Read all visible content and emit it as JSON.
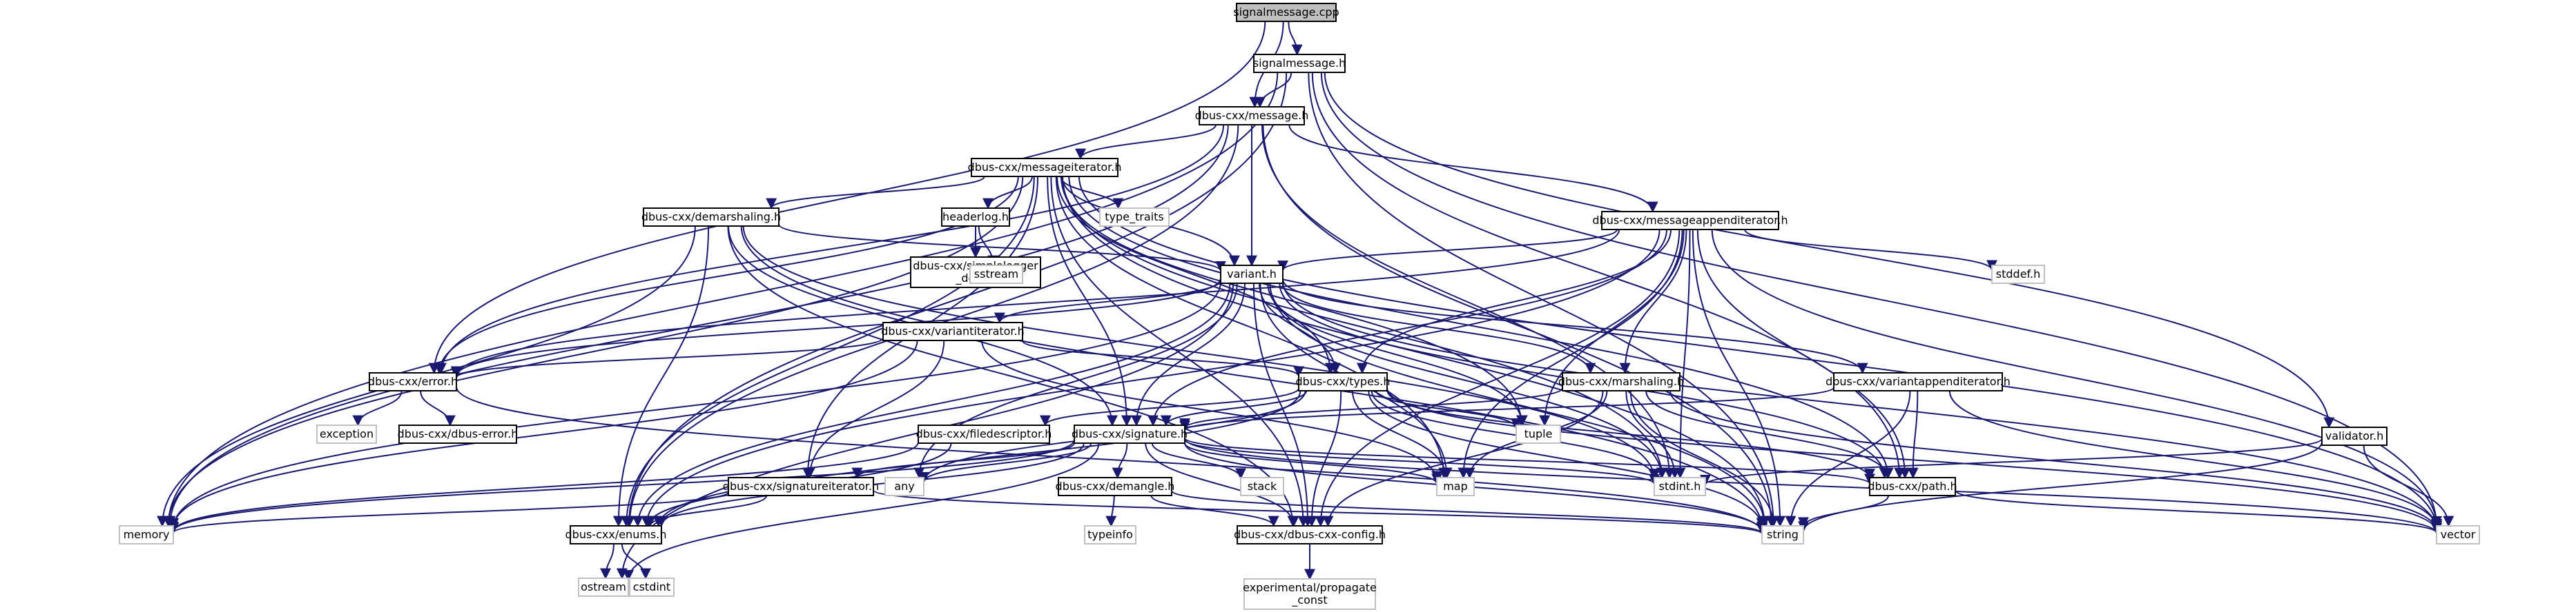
{
  "colors": {
    "edge": "#191970",
    "node_border": "#000000",
    "node_fill": "#ffffff",
    "root_fill": "#bfbfbf",
    "external_border": "#bfbfbf"
  },
  "nodes": [
    {
      "id": "signalmessage_cpp",
      "label": "signalmessage.cpp",
      "kind": "root"
    },
    {
      "id": "signalmessage_h",
      "label": "signalmessage.h",
      "kind": "local"
    },
    {
      "id": "message_h",
      "label": "dbus-cxx/message.h",
      "kind": "local"
    },
    {
      "id": "messageiterator_h",
      "label": "dbus-cxx/messageiterator.h",
      "kind": "local"
    },
    {
      "id": "type_traits",
      "label": "type_traits",
      "kind": "external"
    },
    {
      "id": "headerlog_h",
      "label": "headerlog.h",
      "kind": "local"
    },
    {
      "id": "demarshaling_h",
      "label": "dbus-cxx/demarshaling.h",
      "kind": "local"
    },
    {
      "id": "simplelogger",
      "label": "dbus-cxx/simplelogger\n_defs.h",
      "kind": "local"
    },
    {
      "id": "sstream",
      "label": "sstream",
      "kind": "external"
    },
    {
      "id": "messageappenditerator_h",
      "label": "dbus-cxx/messageappenditerator.h",
      "kind": "local"
    },
    {
      "id": "stddef_h",
      "label": "stddef.h",
      "kind": "external"
    },
    {
      "id": "variant_h",
      "label": "variant.h",
      "kind": "local"
    },
    {
      "id": "variantiterator_h",
      "label": "dbus-cxx/variantiterator.h",
      "kind": "local"
    },
    {
      "id": "error_h",
      "label": "dbus-cxx/error.h",
      "kind": "local"
    },
    {
      "id": "exception",
      "label": "exception",
      "kind": "external"
    },
    {
      "id": "dbus_error_h",
      "label": "dbus-cxx/dbus-error.h",
      "kind": "local"
    },
    {
      "id": "types_h",
      "label": "dbus-cxx/types.h",
      "kind": "local"
    },
    {
      "id": "marshaling_h",
      "label": "dbus-cxx/marshaling.h",
      "kind": "local"
    },
    {
      "id": "variantappenditerator_h",
      "label": "dbus-cxx/variantappenditerator.h",
      "kind": "local"
    },
    {
      "id": "filedescriptor_h",
      "label": "dbus-cxx/filedescriptor.h",
      "kind": "local"
    },
    {
      "id": "signature_h",
      "label": "dbus-cxx/signature.h",
      "kind": "local"
    },
    {
      "id": "tuple",
      "label": "tuple",
      "kind": "external"
    },
    {
      "id": "validator_h",
      "label": "validator.h",
      "kind": "local"
    },
    {
      "id": "signatureiterator_h",
      "label": "dbus-cxx/signatureiterator.h",
      "kind": "local"
    },
    {
      "id": "any",
      "label": "any",
      "kind": "external"
    },
    {
      "id": "stack",
      "label": "stack",
      "kind": "external"
    },
    {
      "id": "map",
      "label": "map",
      "kind": "external"
    },
    {
      "id": "demangle_h",
      "label": "dbus-cxx/demangle.h",
      "kind": "local"
    },
    {
      "id": "stdint_h",
      "label": "stdint.h",
      "kind": "external"
    },
    {
      "id": "path_h",
      "label": "dbus-cxx/path.h",
      "kind": "local"
    },
    {
      "id": "memory",
      "label": "memory",
      "kind": "external"
    },
    {
      "id": "enums_h",
      "label": "dbus-cxx/enums.h",
      "kind": "local"
    },
    {
      "id": "typeinfo",
      "label": "typeinfo",
      "kind": "external"
    },
    {
      "id": "dbus_cxx_config_h",
      "label": "dbus-cxx/dbus-cxx-config.h",
      "kind": "local"
    },
    {
      "id": "string",
      "label": "string",
      "kind": "external"
    },
    {
      "id": "vector",
      "label": "vector",
      "kind": "external"
    },
    {
      "id": "ostream",
      "label": "ostream",
      "kind": "external"
    },
    {
      "id": "cstdint",
      "label": "cstdint",
      "kind": "external"
    },
    {
      "id": "propagate_const",
      "label": "experimental/propagate\n_const",
      "kind": "external"
    }
  ],
  "edges": [
    [
      "signalmessage_cpp",
      "signalmessage_h"
    ],
    [
      "signalmessage_cpp",
      "message_h"
    ],
    [
      "signalmessage_cpp",
      "error_h"
    ],
    [
      "signalmessage_h",
      "message_h"
    ],
    [
      "signalmessage_h",
      "memory"
    ],
    [
      "signalmessage_h",
      "enums_h"
    ],
    [
      "signalmessage_h",
      "path_h"
    ],
    [
      "signalmessage_h",
      "string"
    ],
    [
      "signalmessage_h",
      "vector"
    ],
    [
      "signalmessage_h",
      "validator_h"
    ],
    [
      "message_h",
      "messageiterator_h"
    ],
    [
      "message_h",
      "messageappenditerator_h"
    ],
    [
      "message_h",
      "variant_h"
    ],
    [
      "message_h",
      "error_h"
    ],
    [
      "message_h",
      "memory"
    ],
    [
      "message_h",
      "stdint_h"
    ],
    [
      "message_h",
      "string"
    ],
    [
      "message_h",
      "enums_h"
    ],
    [
      "messageiterator_h",
      "type_traits"
    ],
    [
      "messageiterator_h",
      "headerlog_h"
    ],
    [
      "messageiterator_h",
      "demarshaling_h"
    ],
    [
      "messageiterator_h",
      "variant_h"
    ],
    [
      "messageiterator_h",
      "error_h"
    ],
    [
      "messageiterator_h",
      "types_h"
    ],
    [
      "messageiterator_h",
      "signature_h"
    ],
    [
      "messageiterator_h",
      "signatureiterator_h"
    ],
    [
      "messageiterator_h",
      "tuple"
    ],
    [
      "messageiterator_h",
      "map"
    ],
    [
      "messageiterator_h",
      "stdint_h"
    ],
    [
      "messageiterator_h",
      "string"
    ],
    [
      "messageiterator_h",
      "vector"
    ],
    [
      "messageiterator_h",
      "memory"
    ],
    [
      "messageiterator_h",
      "enums_h"
    ],
    [
      "messageiterator_h",
      "path_h"
    ],
    [
      "messageiterator_h",
      "dbus_cxx_config_h"
    ],
    [
      "headerlog_h",
      "simplelogger"
    ],
    [
      "headerlog_h",
      "sstream"
    ],
    [
      "demarshaling_h",
      "variant_h"
    ],
    [
      "demarshaling_h",
      "signature_h"
    ],
    [
      "demarshaling_h",
      "enums_h"
    ],
    [
      "demarshaling_h",
      "memory"
    ],
    [
      "demarshaling_h",
      "stdint_h"
    ],
    [
      "demarshaling_h",
      "string"
    ],
    [
      "demarshaling_h",
      "dbus_cxx_config_h"
    ],
    [
      "messageappenditerator_h",
      "variant_h"
    ],
    [
      "messageappenditerator_h",
      "stddef_h"
    ],
    [
      "messageappenditerator_h",
      "error_h"
    ],
    [
      "messageappenditerator_h",
      "marshaling_h"
    ],
    [
      "messageappenditerator_h",
      "signature_h"
    ],
    [
      "messageappenditerator_h",
      "types_h"
    ],
    [
      "messageappenditerator_h",
      "tuple"
    ],
    [
      "messageappenditerator_h",
      "map"
    ],
    [
      "messageappenditerator_h",
      "stdint_h"
    ],
    [
      "messageappenditerator_h",
      "string"
    ],
    [
      "messageappenditerator_h",
      "vector"
    ],
    [
      "messageappenditerator_h",
      "enums_h"
    ],
    [
      "messageappenditerator_h",
      "path_h"
    ],
    [
      "messageappenditerator_h",
      "dbus_cxx_config_h"
    ],
    [
      "variant_h",
      "variantiterator_h"
    ],
    [
      "variant_h",
      "error_h"
    ],
    [
      "variant_h",
      "types_h"
    ],
    [
      "variant_h",
      "marshaling_h"
    ],
    [
      "variant_h",
      "variantappenditerator_h"
    ],
    [
      "variant_h",
      "signature_h"
    ],
    [
      "variant_h",
      "tuple"
    ],
    [
      "variant_h",
      "any"
    ],
    [
      "variant_h",
      "map"
    ],
    [
      "variant_h",
      "stdint_h"
    ],
    [
      "variant_h",
      "string"
    ],
    [
      "variant_h",
      "vector"
    ],
    [
      "variant_h",
      "memory"
    ],
    [
      "variant_h",
      "enums_h"
    ],
    [
      "variant_h",
      "path_h"
    ],
    [
      "variant_h",
      "ostream"
    ],
    [
      "variant_h",
      "dbus_cxx_config_h"
    ],
    [
      "variantiterator_h",
      "error_h"
    ],
    [
      "variantiterator_h",
      "types_h"
    ],
    [
      "variantiterator_h",
      "signatureiterator_h"
    ],
    [
      "variantiterator_h",
      "memory"
    ],
    [
      "variantiterator_h",
      "map"
    ],
    [
      "error_h",
      "exception"
    ],
    [
      "error_h",
      "dbus_error_h"
    ],
    [
      "error_h",
      "string"
    ],
    [
      "types_h",
      "filedescriptor_h"
    ],
    [
      "types_h",
      "signature_h"
    ],
    [
      "types_h",
      "tuple"
    ],
    [
      "types_h",
      "any"
    ],
    [
      "types_h",
      "map"
    ],
    [
      "types_h",
      "stdint_h"
    ],
    [
      "types_h",
      "string"
    ],
    [
      "types_h",
      "vector"
    ],
    [
      "types_h",
      "path_h"
    ],
    [
      "types_h",
      "enums_h"
    ],
    [
      "types_h",
      "dbus_cxx_config_h"
    ],
    [
      "marshaling_h",
      "signature_h"
    ],
    [
      "marshaling_h",
      "stdint_h"
    ],
    [
      "marshaling_h",
      "string"
    ],
    [
      "marshaling_h",
      "vector"
    ],
    [
      "marshaling_h",
      "path_h"
    ],
    [
      "marshaling_h",
      "map"
    ],
    [
      "marshaling_h",
      "dbus_cxx_config_h"
    ],
    [
      "variantappenditerator_h",
      "signature_h"
    ],
    [
      "variantappenditerator_h",
      "path_h"
    ],
    [
      "variantappenditerator_h",
      "string"
    ],
    [
      "variantappenditerator_h",
      "vector"
    ],
    [
      "filedescriptor_h",
      "memory"
    ],
    [
      "filedescriptor_h",
      "enums_h"
    ],
    [
      "signature_h",
      "signatureiterator_h"
    ],
    [
      "signature_h",
      "any"
    ],
    [
      "signature_h",
      "stack"
    ],
    [
      "signature_h",
      "map"
    ],
    [
      "signature_h",
      "demangle_h"
    ],
    [
      "signature_h",
      "stdint_h"
    ],
    [
      "signature_h",
      "path_h"
    ],
    [
      "signature_h",
      "string"
    ],
    [
      "signature_h",
      "vector"
    ],
    [
      "signature_h",
      "memory"
    ],
    [
      "signature_h",
      "enums_h"
    ],
    [
      "signature_h",
      "dbus_cxx_config_h"
    ],
    [
      "signature_h",
      "ostream"
    ],
    [
      "validator_h",
      "stdint_h"
    ],
    [
      "validator_h",
      "string"
    ],
    [
      "validator_h",
      "vector"
    ],
    [
      "signatureiterator_h",
      "memory"
    ],
    [
      "signatureiterator_h",
      "enums_h"
    ],
    [
      "signatureiterator_h",
      "string"
    ],
    [
      "demangle_h",
      "typeinfo"
    ],
    [
      "demangle_h",
      "string"
    ],
    [
      "demangle_h",
      "dbus_cxx_config_h"
    ],
    [
      "path_h",
      "string"
    ],
    [
      "path_h",
      "vector"
    ],
    [
      "enums_h",
      "ostream"
    ],
    [
      "enums_h",
      "cstdint"
    ],
    [
      "dbus_cxx_config_h",
      "propagate_const"
    ]
  ]
}
